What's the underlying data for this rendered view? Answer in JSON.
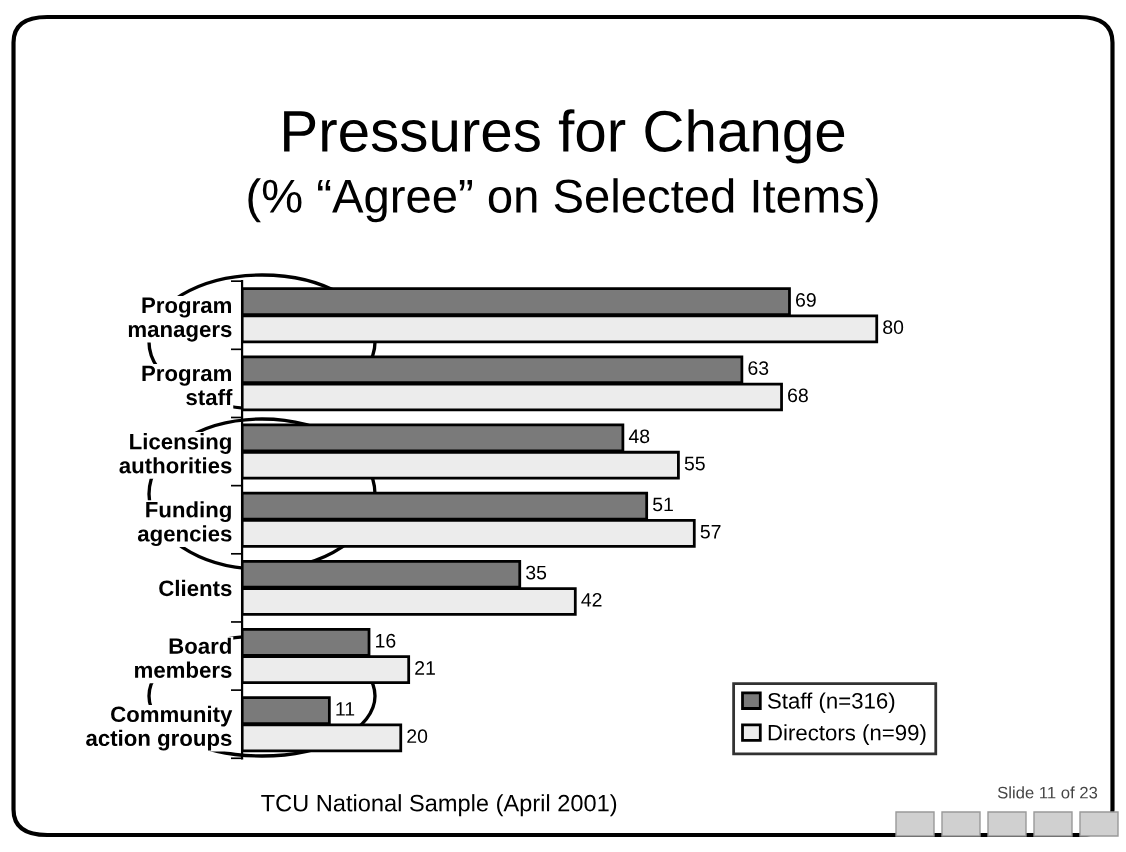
{
  "chart_data": {
    "type": "bar",
    "orientation": "horizontal",
    "title": "Pressures for Change",
    "subtitle": "(% “Agree” on Selected Items)",
    "categories": [
      "Program\nmanagers",
      "Program\nstaff",
      "Licensing\nauthorities",
      "Funding\nagencies",
      "Clients",
      "Board\nmembers",
      "Community\naction groups"
    ],
    "series": [
      {
        "name": "Staff (n=316)",
        "color": "#7a7a7a",
        "values": [
          69,
          63,
          48,
          51,
          35,
          16,
          11
        ]
      },
      {
        "name": "Directors (n=99)",
        "color": "#ececec",
        "values": [
          80,
          68,
          55,
          57,
          42,
          21,
          20
        ]
      }
    ],
    "data_labels": true,
    "legend": "bottom right",
    "grid": false,
    "annotations": [
      "TCU National Sample (April 2001)",
      "Slide 11 of 23"
    ]
  }
}
